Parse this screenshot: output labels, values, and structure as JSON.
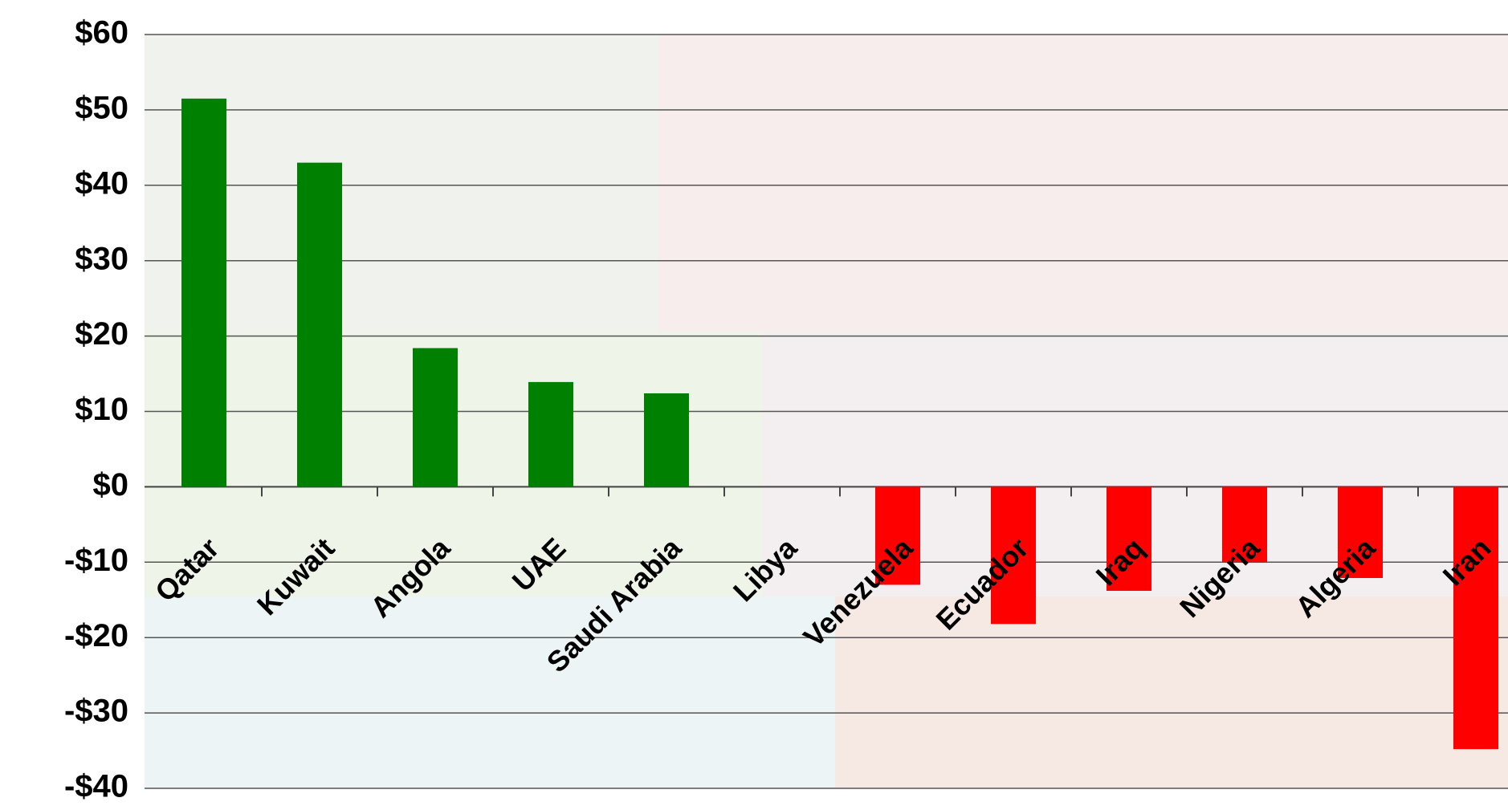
{
  "chart_data": {
    "type": "bar",
    "categories": [
      "Qatar",
      "Kuwait",
      "Angola",
      "UAE",
      "Saudi Arabia",
      "Libya",
      "Venezuela",
      "Ecuador",
      "Iraq",
      "Nigeria",
      "Algeria",
      "Iran"
    ],
    "values": [
      51.5,
      43,
      18.4,
      13.9,
      12.4,
      0,
      -13,
      -18.2,
      -13.8,
      -10,
      -12.1,
      -34.8
    ],
    "colors": [
      "#008000",
      "#008000",
      "#008000",
      "#008000",
      "#008000",
      "#008000",
      "#ff0000",
      "#ff0000",
      "#ff0000",
      "#ff0000",
      "#ff0000",
      "#ff0000"
    ],
    "ylim": [
      -40,
      60
    ],
    "yticks": [
      {
        "value": -40,
        "label": "-$40"
      },
      {
        "value": -30,
        "label": "-$30"
      },
      {
        "value": -20,
        "label": "-$20"
      },
      {
        "value": -10,
        "label": "-$10"
      },
      {
        "value": 0,
        "label": "$0"
      },
      {
        "value": 10,
        "label": "$10"
      },
      {
        "value": 20,
        "label": "$20"
      },
      {
        "value": 30,
        "label": "$30"
      },
      {
        "value": 40,
        "label": "$40"
      },
      {
        "value": 50,
        "label": "$50"
      },
      {
        "value": 60,
        "label": "$60"
      }
    ],
    "grid": true
  }
}
